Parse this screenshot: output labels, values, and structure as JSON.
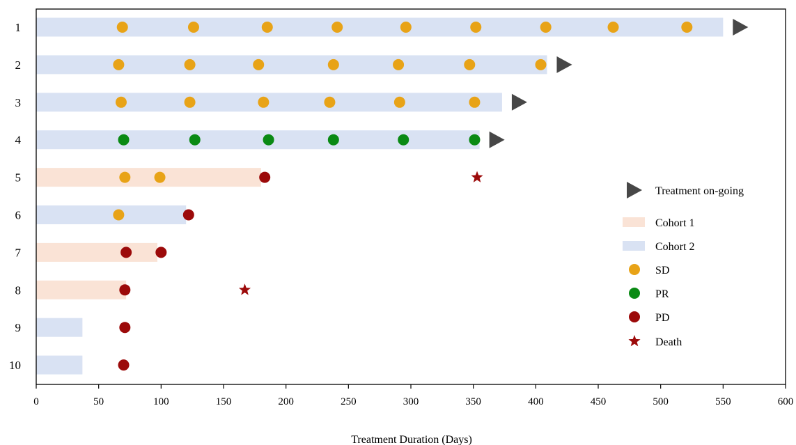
{
  "chart_data": {
    "type": "swimmer",
    "xlabel": "Treatment Duration (Days)",
    "ylabel": "",
    "xlim": [
      0,
      600
    ],
    "xticks": [
      0,
      50,
      100,
      150,
      200,
      250,
      300,
      350,
      400,
      450,
      500,
      550,
      600
    ],
    "legend_placement": "right",
    "legend": [
      {
        "key": "ongoing",
        "label": "Treatment on-going",
        "symbol": "triangle"
      },
      {
        "key": "cohort1",
        "label": "Cohort 1",
        "symbol": "bar"
      },
      {
        "key": "cohort2",
        "label": "Cohort 2",
        "symbol": "bar"
      },
      {
        "key": "SD",
        "label": "SD",
        "symbol": "circle"
      },
      {
        "key": "PR",
        "label": "PR",
        "symbol": "circle"
      },
      {
        "key": "PD",
        "label": "PD",
        "symbol": "circle"
      },
      {
        "key": "death",
        "label": "Death",
        "symbol": "star"
      }
    ],
    "colors": {
      "cohort1": "#fae3d6",
      "cohort2": "#d9e2f3",
      "SD": "#e8a317",
      "PR": "#0a8a14",
      "PD": "#9c0a0a",
      "death": "#9c0a0a",
      "ongoing": "#474747",
      "axis": "#000000"
    },
    "patients": [
      {
        "id": "1",
        "cohort": "cohort2",
        "duration": 550,
        "ongoing": true,
        "responses": [
          {
            "day": 69,
            "type": "SD"
          },
          {
            "day": 126,
            "type": "SD"
          },
          {
            "day": 185,
            "type": "SD"
          },
          {
            "day": 241,
            "type": "SD"
          },
          {
            "day": 296,
            "type": "SD"
          },
          {
            "day": 352,
            "type": "SD"
          },
          {
            "day": 408,
            "type": "SD"
          },
          {
            "day": 462,
            "type": "SD"
          },
          {
            "day": 521,
            "type": "SD"
          }
        ],
        "death": null
      },
      {
        "id": "2",
        "cohort": "cohort2",
        "duration": 409,
        "ongoing": true,
        "responses": [
          {
            "day": 66,
            "type": "SD"
          },
          {
            "day": 123,
            "type": "SD"
          },
          {
            "day": 178,
            "type": "SD"
          },
          {
            "day": 238,
            "type": "SD"
          },
          {
            "day": 290,
            "type": "SD"
          },
          {
            "day": 347,
            "type": "SD"
          },
          {
            "day": 404,
            "type": "SD"
          }
        ],
        "death": null
      },
      {
        "id": "3",
        "cohort": "cohort2",
        "duration": 373,
        "ongoing": true,
        "responses": [
          {
            "day": 68,
            "type": "SD"
          },
          {
            "day": 123,
            "type": "SD"
          },
          {
            "day": 182,
            "type": "SD"
          },
          {
            "day": 235,
            "type": "SD"
          },
          {
            "day": 291,
            "type": "SD"
          },
          {
            "day": 351,
            "type": "SD"
          }
        ],
        "death": null
      },
      {
        "id": "4",
        "cohort": "cohort2",
        "duration": 355,
        "ongoing": true,
        "responses": [
          {
            "day": 70,
            "type": "PR"
          },
          {
            "day": 127,
            "type": "PR"
          },
          {
            "day": 186,
            "type": "PR"
          },
          {
            "day": 238,
            "type": "PR"
          },
          {
            "day": 294,
            "type": "PR"
          },
          {
            "day": 351,
            "type": "PR"
          }
        ],
        "death": null
      },
      {
        "id": "5",
        "cohort": "cohort1",
        "duration": 180,
        "ongoing": false,
        "responses": [
          {
            "day": 71,
            "type": "SD"
          },
          {
            "day": 99,
            "type": "SD"
          },
          {
            "day": 183,
            "type": "PD"
          }
        ],
        "death": 353
      },
      {
        "id": "6",
        "cohort": "cohort2",
        "duration": 120,
        "ongoing": false,
        "responses": [
          {
            "day": 66,
            "type": "SD"
          },
          {
            "day": 122,
            "type": "PD"
          }
        ],
        "death": null
      },
      {
        "id": "7",
        "cohort": "cohort1",
        "duration": 97,
        "ongoing": false,
        "responses": [
          {
            "day": 72,
            "type": "PD"
          },
          {
            "day": 100,
            "type": "PD"
          }
        ],
        "death": null
      },
      {
        "id": "8",
        "cohort": "cohort1",
        "duration": 72,
        "ongoing": false,
        "responses": [
          {
            "day": 71,
            "type": "PD"
          }
        ],
        "death": 167
      },
      {
        "id": "9",
        "cohort": "cohort2",
        "duration": 37,
        "ongoing": false,
        "responses": [
          {
            "day": 71,
            "type": "PD"
          }
        ],
        "death": null
      },
      {
        "id": "10",
        "cohort": "cohort2",
        "duration": 37,
        "ongoing": false,
        "responses": [
          {
            "day": 70,
            "type": "PD"
          }
        ],
        "death": null
      }
    ]
  }
}
